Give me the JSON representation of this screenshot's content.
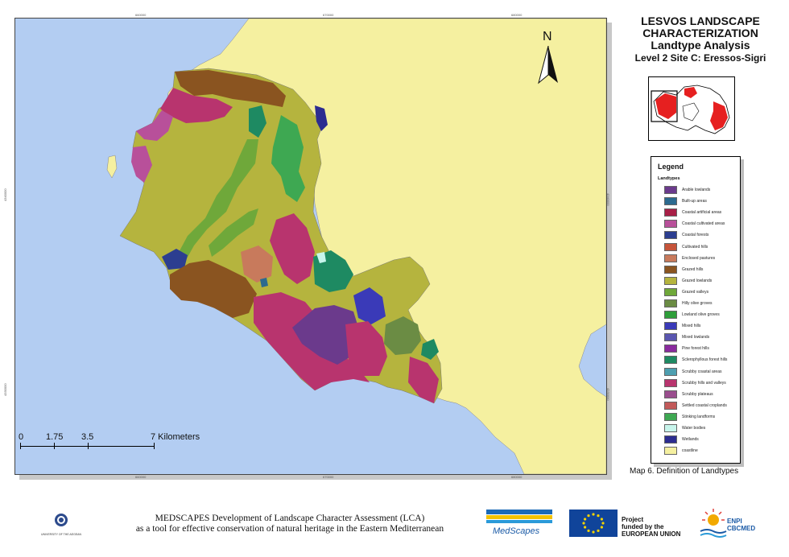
{
  "title": {
    "line1": "LESVOS LANDSCAPE",
    "line2": "CHARACTERIZATION",
    "line3": "Landtype Analysis",
    "line4": "Level 2 Site C: Eressos-Sigri"
  },
  "north_arrow": {
    "label": "N"
  },
  "legend": {
    "title": "Legend",
    "subtitle": "Landtypes",
    "items": [
      {
        "label": "Arable lowlands",
        "color": "#6b3a8c"
      },
      {
        "label": "Built-up areas",
        "color": "#2b6a8f"
      },
      {
        "label": "Coastal artificial areas",
        "color": "#a81f46"
      },
      {
        "label": "Coastal cultivated areas",
        "color": "#b8509a"
      },
      {
        "label": "Coastal forests",
        "color": "#2c3e90"
      },
      {
        "label": "Cultivated hills",
        "color": "#c6543a"
      },
      {
        "label": "Enclosed pastures",
        "color": "#c87a5c"
      },
      {
        "label": "Grazed hills",
        "color": "#8a5420"
      },
      {
        "label": "Grazed lowlands",
        "color": "#b5b43e"
      },
      {
        "label": "Grazed valleys",
        "color": "#6fa83a"
      },
      {
        "label": "Hilly olive groves",
        "color": "#6b8c44"
      },
      {
        "label": "Lowland olive groves",
        "color": "#2e9e3a"
      },
      {
        "label": "Mixed hills",
        "color": "#3a3ab8"
      },
      {
        "label": "Mixed lowlands",
        "color": "#5a56b0"
      },
      {
        "label": "Pine forest hills",
        "color": "#8a2a9e"
      },
      {
        "label": "Sclerophyllous forest hills",
        "color": "#1e8a62"
      },
      {
        "label": "Scrubby coastal areas",
        "color": "#4e9fb0"
      },
      {
        "label": "Scrubby hills and valleys",
        "color": "#b8346e"
      },
      {
        "label": "Scrubby plateaus",
        "color": "#9a4e8e"
      },
      {
        "label": "Settled coastal croplands",
        "color": "#c25a5a"
      },
      {
        "label": "Stinking landforms",
        "color": "#3ea852"
      },
      {
        "label": "Water bodies",
        "color": "#c8f5ec"
      },
      {
        "label": "Wetlands",
        "color": "#2c2c90"
      },
      {
        "label": "coastline",
        "color": "#f5f0a0"
      }
    ]
  },
  "map_caption": "Map 6. Definition of Landtypes",
  "scalebar": {
    "labels": [
      "0",
      "1.75",
      "3.5",
      "7 Kilometers"
    ]
  },
  "grid_labels": {
    "top": [
      "660000",
      "670000",
      "680000"
    ],
    "bottom": [
      "660000",
      "670000",
      "680000"
    ],
    "left": [
      "4340000",
      "4330000"
    ],
    "right": [
      "4340000",
      "4330000"
    ]
  },
  "footer": {
    "line1": "MEDSCAPES Development of Landscape Character Assessment (LCA)",
    "line2": "as a tool for effective conservation of natural heritage in the Eastern Mediterranean",
    "university": "UNIVERSITY OF THE AEGEAN",
    "medscapes_logo": "MedScapes",
    "funded_line1": "Project",
    "funded_line2": "funded by the",
    "funded_line3": "EUROPEAN UNION",
    "enpi_line1": "ENPI",
    "enpi_line2": "CBCMED"
  },
  "colors": {
    "sea": "#b3cdf2",
    "land_outside": "#f5f0a0"
  }
}
